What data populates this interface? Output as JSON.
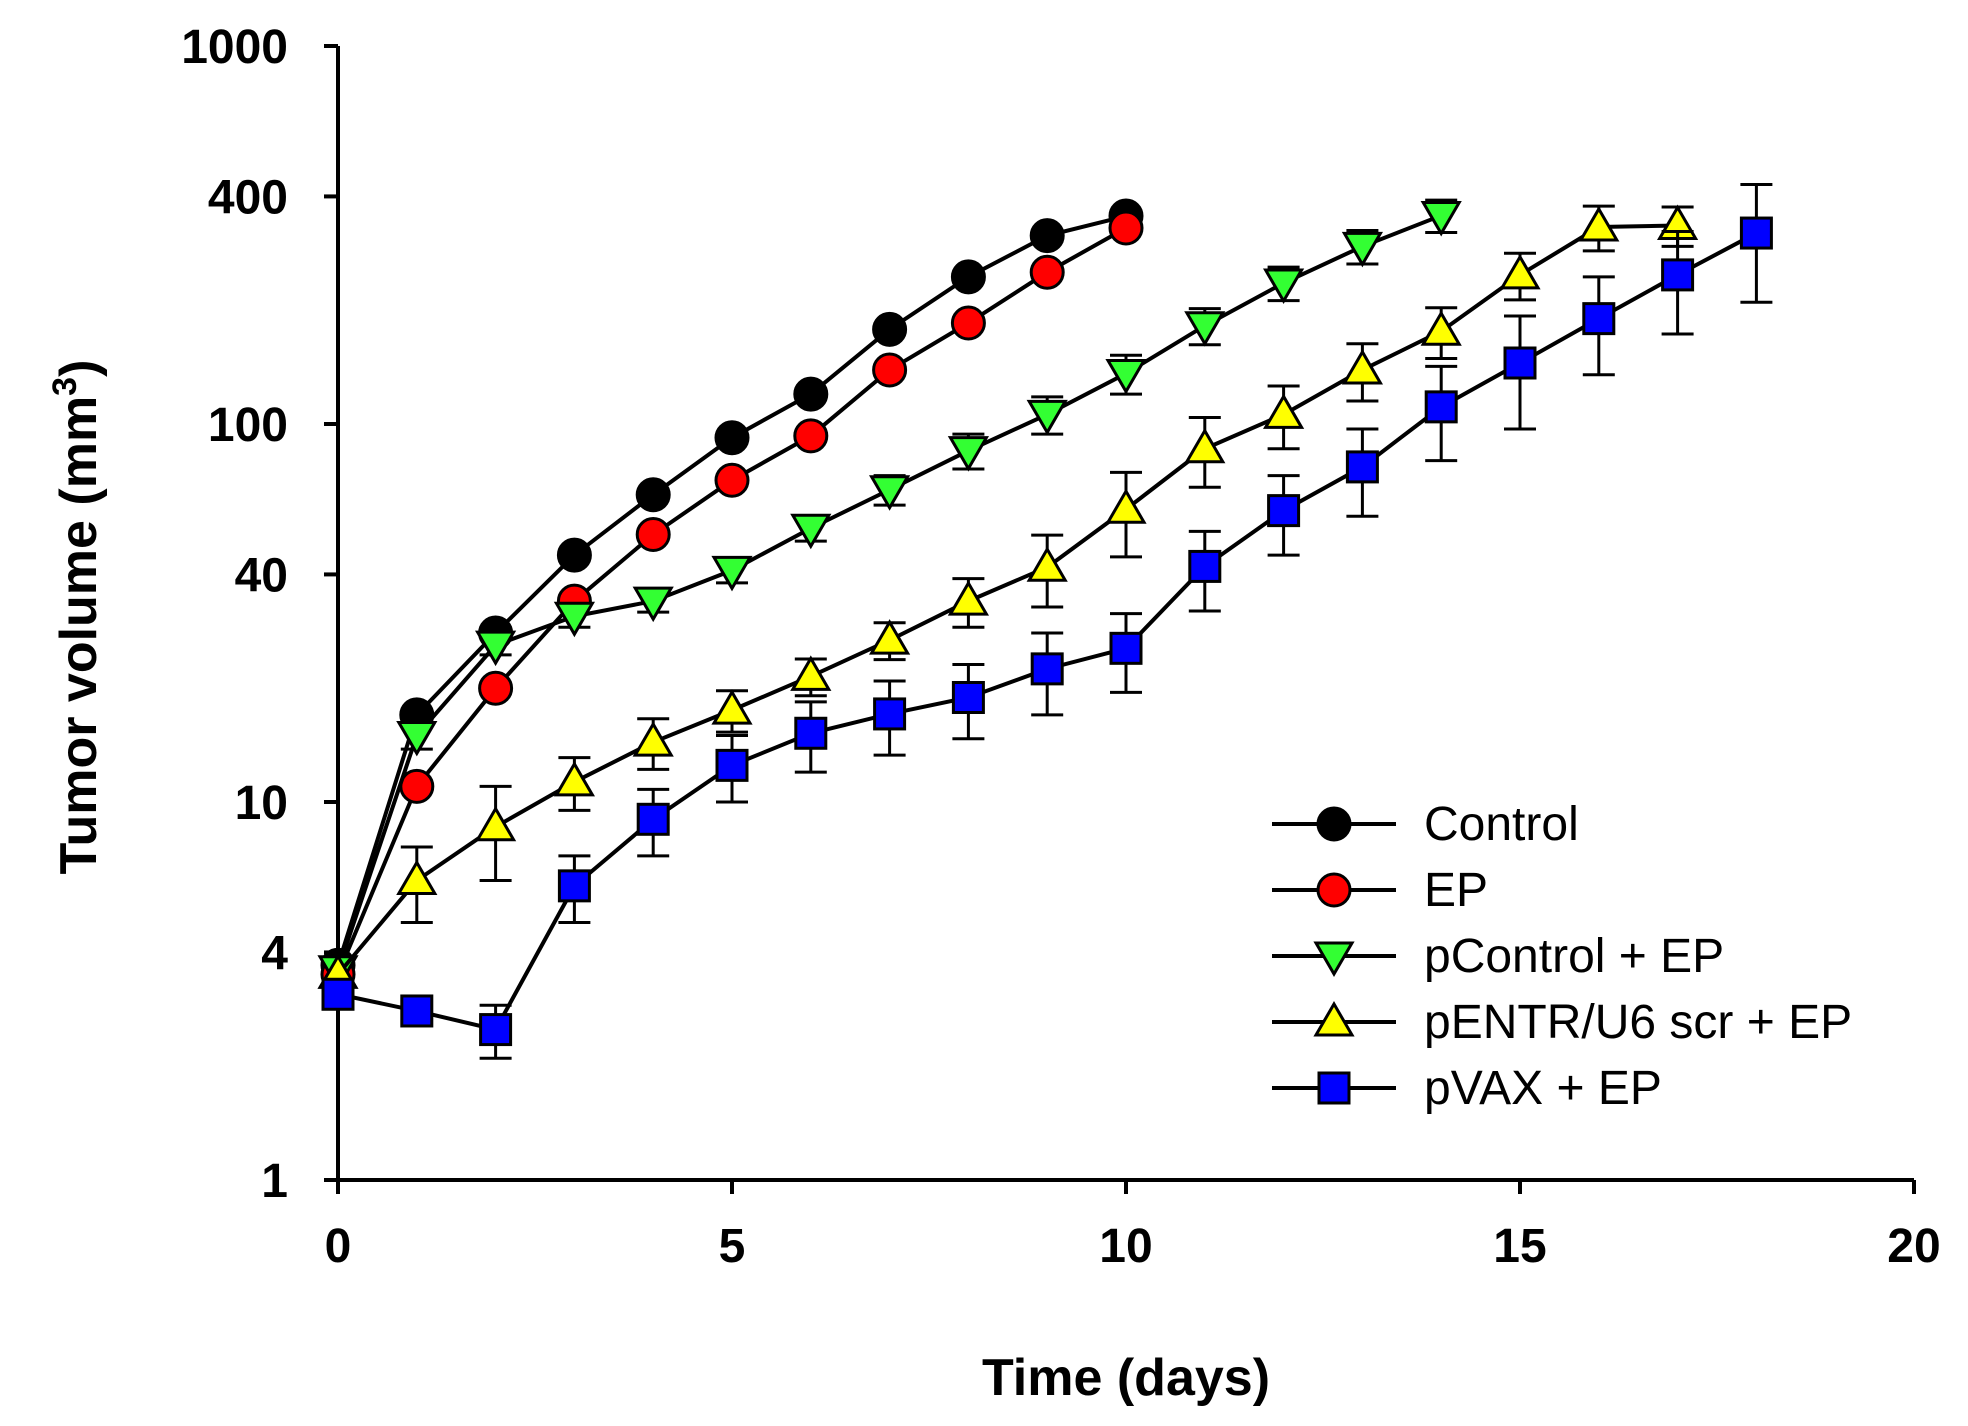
{
  "chart_data": {
    "type": "line",
    "title": "",
    "xlabel": "Time (days)",
    "ylabel_main": "Tumor volume (mm",
    "ylabel_sup": "3",
    "ylabel_close": ")",
    "y_scale": "log",
    "xlim": [
      0,
      20
    ],
    "ylim": [
      1,
      1000
    ],
    "x_ticks": [
      0,
      5,
      10,
      15,
      20
    ],
    "x_tick_labels": [
      "0",
      "5",
      "10",
      "15",
      "20"
    ],
    "y_ticks": [
      1,
      4,
      10,
      40,
      100,
      400,
      1000
    ],
    "y_tick_labels": [
      "1",
      "4",
      "10",
      "40",
      "100",
      "400",
      "1000"
    ],
    "grid": false,
    "legend_position": "bottom-right",
    "series": [
      {
        "name": "Control",
        "marker": "circle",
        "color": "#000000",
        "x": [
          0,
          1,
          2,
          3,
          4,
          5,
          6,
          7,
          8,
          9,
          10
        ],
        "y": [
          3.7,
          17,
          28,
          45,
          65,
          92,
          120,
          178,
          245,
          315,
          355
        ],
        "err": [
          0,
          0,
          0,
          0,
          0,
          0,
          0,
          0,
          0,
          0,
          0
        ]
      },
      {
        "name": "EP",
        "marker": "circle",
        "color": "#ff0000",
        "x": [
          0,
          1,
          2,
          3,
          4,
          5,
          6,
          7,
          8,
          9,
          10
        ],
        "y": [
          3.5,
          11,
          20,
          34,
          51,
          71,
          93,
          139,
          185,
          252,
          330
        ],
        "err": [
          0,
          0,
          0,
          0,
          0,
          0,
          0,
          0,
          0,
          0,
          0
        ]
      },
      {
        "name": "pControl + EP",
        "marker": "triangle-down",
        "color": "#33ff33",
        "x": [
          0,
          1,
          2,
          3,
          4,
          5,
          6,
          7,
          8,
          9,
          10,
          11,
          12,
          13,
          14
        ],
        "y": [
          3.6,
          15,
          26,
          31,
          34,
          41,
          53,
          67,
          85,
          106,
          136,
          182,
          236,
          295,
          356
        ],
        "err": [
          0,
          1.2,
          1.5,
          2,
          2.2,
          3,
          4,
          6,
          9,
          12,
          16,
          20,
          24,
          30,
          35
        ]
      },
      {
        "name": "pENTR/U6 scr + EP",
        "marker": "triangle-up",
        "color": "#ffff00",
        "x": [
          0,
          1,
          2,
          3,
          4,
          5,
          6,
          7,
          8,
          9,
          10,
          11,
          12,
          13,
          14,
          15,
          16,
          17
        ],
        "y": [
          3.5,
          6.2,
          8.6,
          11.3,
          14.4,
          17.5,
          21.5,
          26.8,
          34,
          41.8,
          59.5,
          86,
          106,
          139,
          176,
          248,
          332,
          335
        ],
        "err": [
          0,
          1.4,
          2.4,
          1.8,
          2.2,
          2.2,
          2.4,
          3,
          5,
          9,
          15,
          18,
          20,
          24,
          27,
          35,
          45,
          40
        ]
      },
      {
        "name": "pVAX + EP",
        "marker": "square",
        "color": "#0000ff",
        "x": [
          0,
          1,
          2,
          3,
          4,
          5,
          6,
          7,
          8,
          9,
          10,
          11,
          12,
          13,
          14,
          15,
          16,
          17,
          18
        ],
        "y": [
          3.1,
          2.8,
          2.5,
          6.0,
          9.0,
          12.5,
          15.2,
          17.1,
          18.9,
          22.5,
          25.5,
          42,
          59,
          77,
          111,
          145,
          190,
          248,
          320
        ],
        "err": [
          0,
          0,
          0.4,
          1.2,
          1.8,
          2.5,
          3.2,
          3.8,
          4.2,
          5.5,
          6,
          10,
          14,
          20,
          31,
          48,
          55,
          75,
          110
        ]
      }
    ]
  }
}
